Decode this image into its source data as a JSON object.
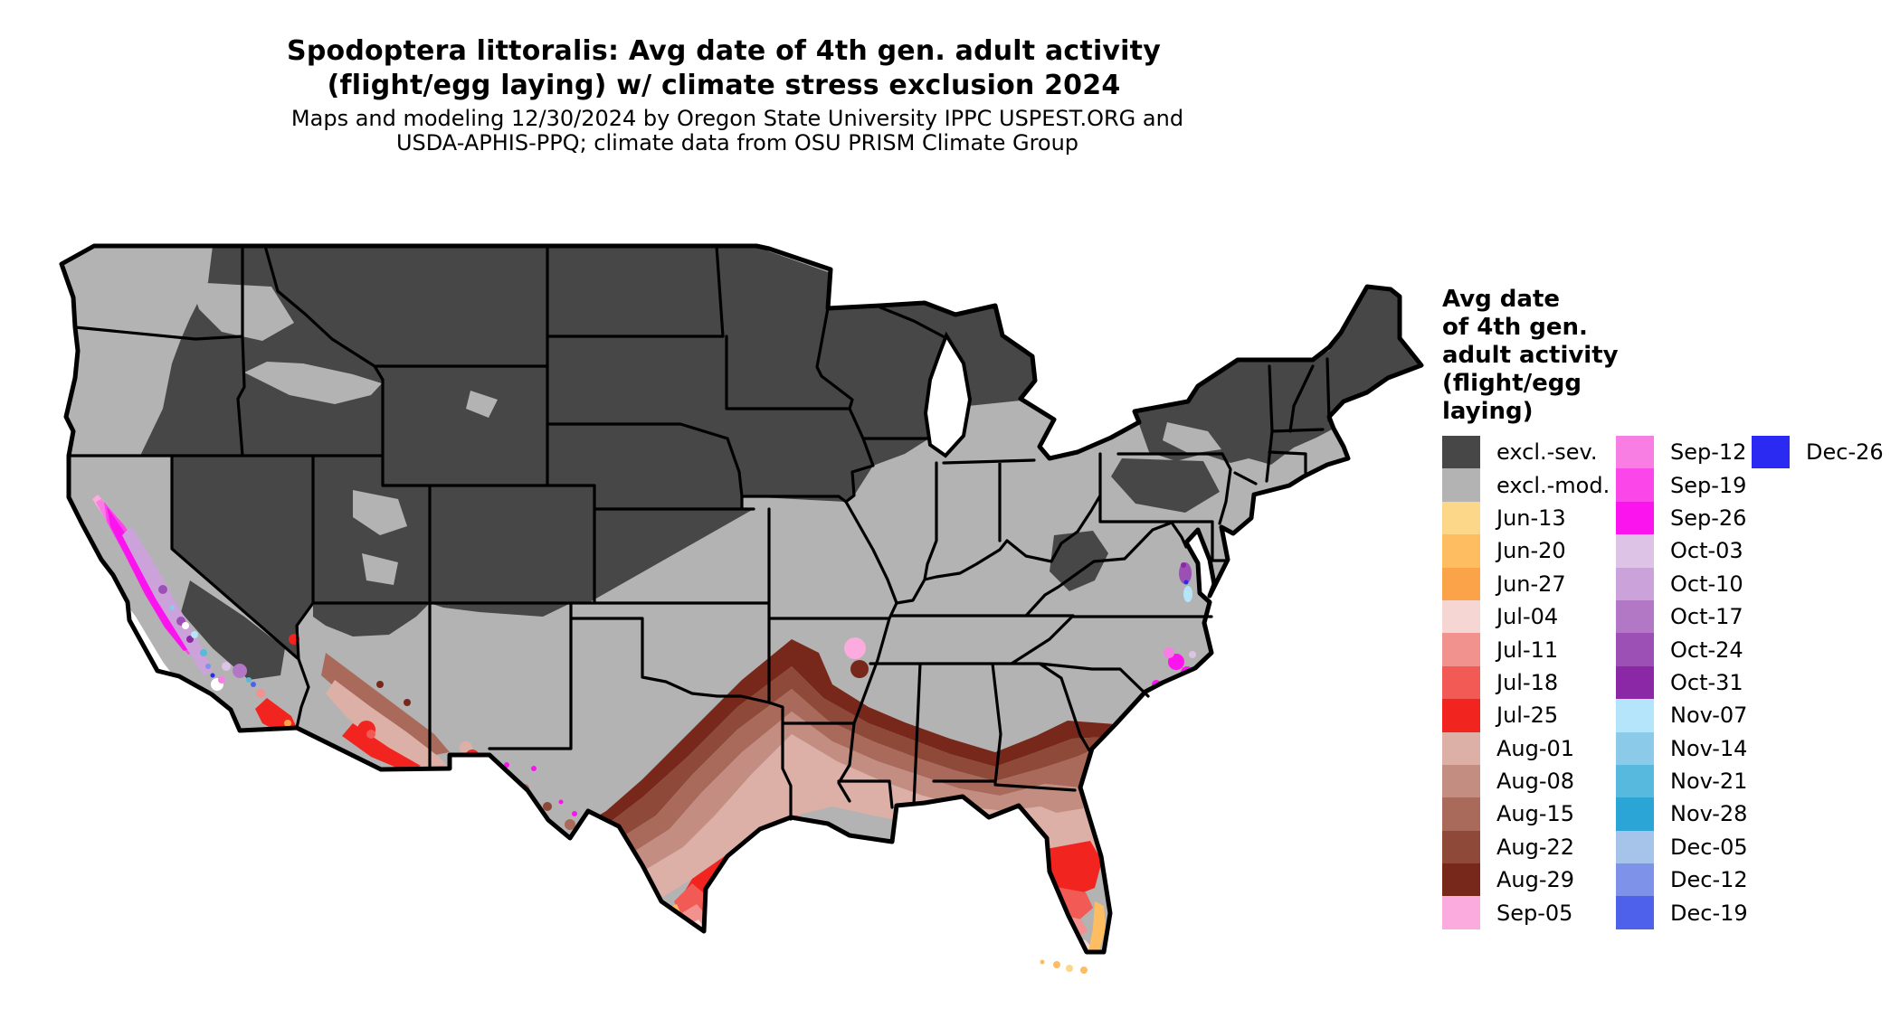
{
  "title": {
    "line1": "Spodoptera littoralis: Avg date of 4th gen. adult activity",
    "line2": "(flight/egg laying) w/ climate stress exclusion 2024"
  },
  "subtitle": {
    "line1": "Maps and modeling 12/30/2024 by Oregon State University IPPC USPEST.ORG and",
    "line2": "USDA-APHIS-PPQ; climate data from OSU PRISM Climate Group"
  },
  "legend": {
    "title_lines": [
      "Avg date",
      "of 4th gen.",
      "adult activity",
      "(flight/egg",
      "laying)"
    ],
    "columns": [
      [
        {
          "label": "excl.-sev.",
          "color": "#474747"
        },
        {
          "label": "excl.-mod.",
          "color": "#b3b3b3"
        },
        {
          "label": "Jun-13",
          "color": "#fcd689"
        },
        {
          "label": "Jun-20",
          "color": "#fdbd60"
        },
        {
          "label": "Jun-27",
          "color": "#fba348"
        },
        {
          "label": "Jul-04",
          "color": "#f5d6d2"
        },
        {
          "label": "Jul-11",
          "color": "#f2928e"
        },
        {
          "label": "Jul-18",
          "color": "#f15a55"
        },
        {
          "label": "Jul-25",
          "color": "#f2241f"
        },
        {
          "label": "Aug-01",
          "color": "#dcb0a7"
        },
        {
          "label": "Aug-08",
          "color": "#c48d81"
        },
        {
          "label": "Aug-15",
          "color": "#aa6a5b"
        },
        {
          "label": "Aug-22",
          "color": "#8e4938"
        },
        {
          "label": "Aug-29",
          "color": "#78281a"
        },
        {
          "label": "Sep-05",
          "color": "#fbabdd"
        }
      ],
      [
        {
          "label": "Sep-12",
          "color": "#f97ee3"
        },
        {
          "label": "Sep-19",
          "color": "#fb47ea"
        },
        {
          "label": "Sep-26",
          "color": "#fb14ee"
        },
        {
          "label": "Oct-03",
          "color": "#ddc3e6"
        },
        {
          "label": "Oct-10",
          "color": "#cba3da"
        },
        {
          "label": "Oct-17",
          "color": "#b378c5"
        },
        {
          "label": "Oct-24",
          "color": "#9c50b6"
        },
        {
          "label": "Oct-31",
          "color": "#8a28a6"
        },
        {
          "label": "Nov-07",
          "color": "#b4e5fa"
        },
        {
          "label": "Nov-14",
          "color": "#8bcbe9"
        },
        {
          "label": "Nov-21",
          "color": "#58b9de"
        },
        {
          "label": "Nov-28",
          "color": "#2aa5d6"
        },
        {
          "label": "Dec-05",
          "color": "#a6c4ea"
        },
        {
          "label": "Dec-12",
          "color": "#7e92e9"
        },
        {
          "label": "Dec-19",
          "color": "#4e61eb"
        }
      ],
      [
        {
          "label": "Dec-26",
          "color": "#2a2af2"
        }
      ]
    ]
  },
  "palette": {
    "excl_sev": "#474747",
    "excl_mod": "#b3b3b3",
    "jun13": "#fcd689",
    "jun20": "#fdbd60",
    "jun27": "#fba348",
    "jul04": "#f5d6d2",
    "jul11": "#f2928e",
    "jul18": "#f15a55",
    "jul25": "#f2241f",
    "aug01": "#dcb0a7",
    "aug08": "#c48d81",
    "aug15": "#aa6a5b",
    "aug22": "#8e4938",
    "aug29": "#78281a",
    "sep05": "#fbabdd",
    "sep12": "#f97ee3",
    "sep19": "#fb47ea",
    "sep26": "#fb14ee",
    "oct03": "#ddc3e6",
    "oct10": "#cba3da",
    "oct17": "#b378c5",
    "oct24": "#9c50b6",
    "oct31": "#8a28a6",
    "nov07": "#b4e5fa",
    "nov14": "#8bcbe9",
    "nov21": "#58b9de",
    "nov28": "#2aa5d6",
    "dec05": "#a6c4ea",
    "dec12": "#7e92e9",
    "dec19": "#4e61eb",
    "dec26": "#2a2af2",
    "white": "#ffffff",
    "border": "#000000"
  },
  "map": {
    "kind": "CONUS choropleth raster of average date of 4th generation adult activity",
    "base_fill": "excl.-mod. gray with excl.-sev. dark gray across the northern and mountain states",
    "colored_areas": "Jun–Sep warm colors across southern US and Florida/Texas; Sep–Dec magenta/purple/blue in California valley, Sierra, coastal NC and Chesapeake"
  }
}
